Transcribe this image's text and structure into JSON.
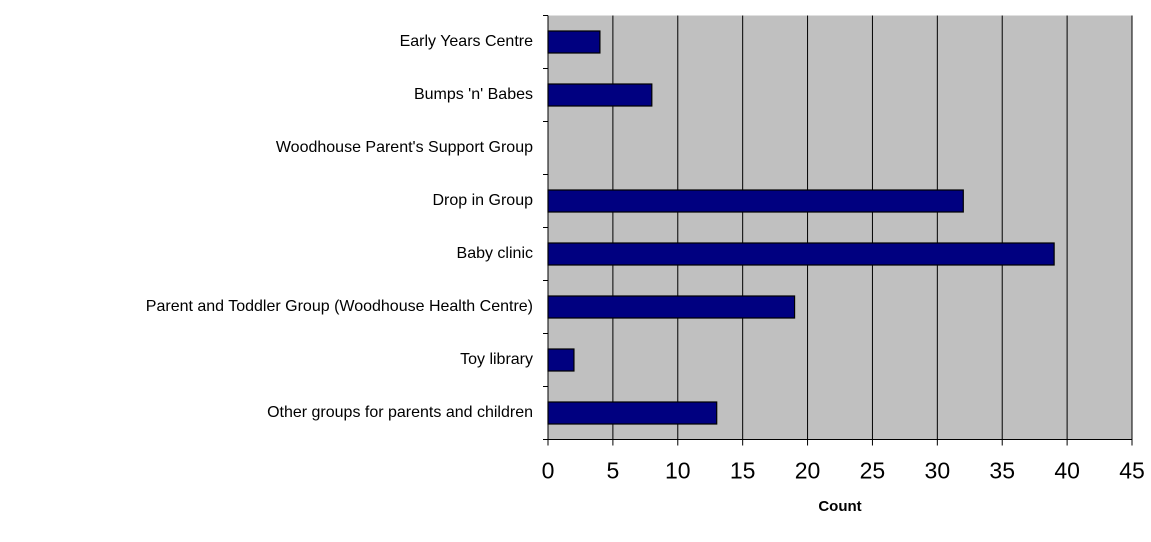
{
  "chart_data": {
    "type": "bar",
    "orientation": "horizontal",
    "categories": [
      "Early Years Centre",
      "Bumps 'n' Babes",
      "Woodhouse Parent's Support Group",
      "Drop in Group",
      "Baby clinic",
      "Parent and Toddler Group (Woodhouse Health Centre)",
      "Toy library",
      "Other groups for parents and children"
    ],
    "values": [
      4,
      8,
      0,
      32,
      39,
      19,
      2,
      13
    ],
    "color": "#000080",
    "x_label": "Count",
    "xlim": [
      0,
      45
    ],
    "xticks": [
      0,
      5,
      10,
      15,
      20,
      25,
      30,
      35,
      40,
      45
    ],
    "grid": true,
    "plot_background": "#c0c0c0"
  }
}
